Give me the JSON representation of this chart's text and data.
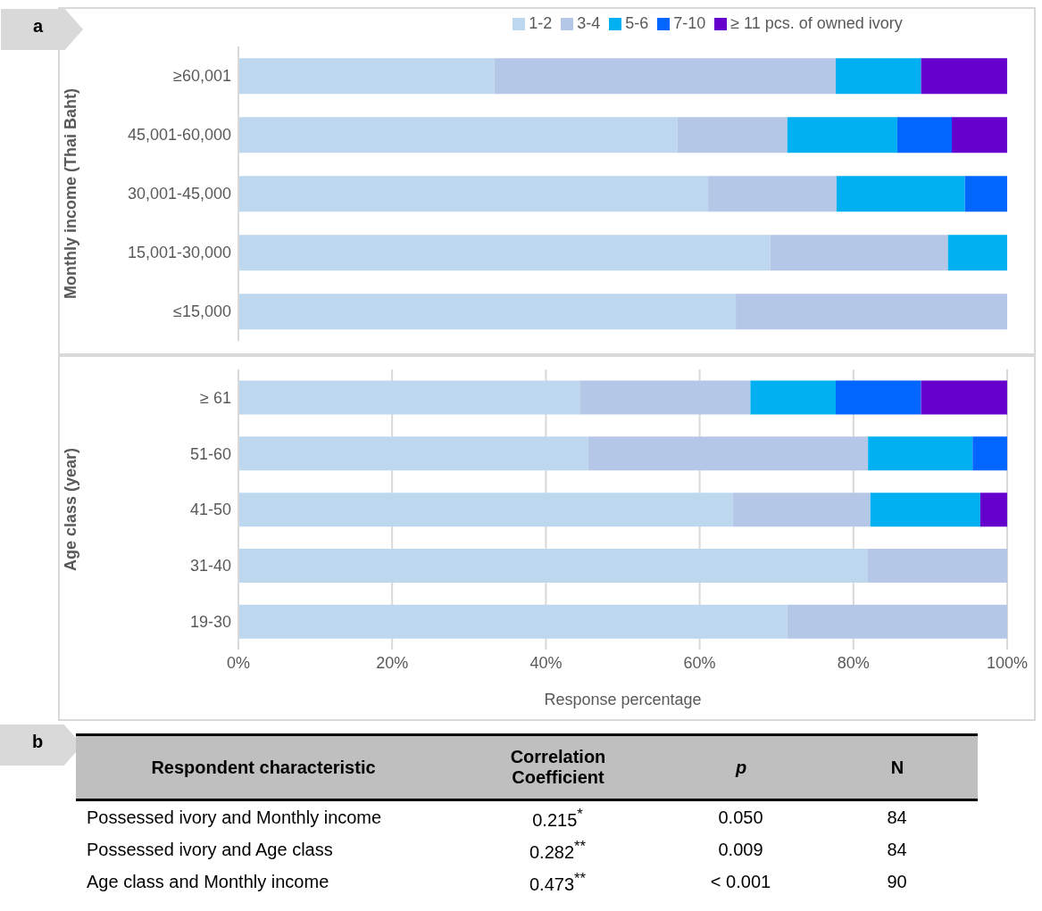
{
  "chart_data": [
    {
      "type": "bar",
      "orientation": "horizontal",
      "stacked": true,
      "annotations": [
        "a"
      ],
      "ylabel": "Monthly income (Thai Baht)",
      "categories": [
        "≥60,001",
        "45,001-60,000",
        "30,001-45,000",
        "15,001-30,000",
        "≤15,000"
      ],
      "series": [
        {
          "name": "1-2",
          "color": "#bdd7ee",
          "values": [
            33.3,
            57.1,
            61.1,
            69.2,
            64.7
          ]
        },
        {
          "name": "3-4",
          "color": "#b4c7e7",
          "values": [
            44.4,
            14.3,
            16.7,
            23.1,
            35.3
          ]
        },
        {
          "name": "5-6",
          "color": "#00b0f0",
          "values": [
            11.1,
            14.3,
            16.7,
            7.7,
            0
          ]
        },
        {
          "name": "7-10",
          "color": "#0066ff",
          "values": [
            0,
            7.1,
            5.5,
            0,
            0
          ]
        },
        {
          "name": "≥ 11 pcs. of owned ivory",
          "color": "#6600cc",
          "values": [
            11.2,
            7.2,
            0,
            0,
            0
          ]
        }
      ],
      "xlim": [
        0,
        100
      ],
      "xticks": [
        {
          "value": 0,
          "label": null
        },
        {
          "value": 20,
          "label": null
        },
        {
          "value": 40,
          "label": null
        },
        {
          "value": 60,
          "label": null
        },
        {
          "value": 80,
          "label": null
        },
        {
          "value": 100,
          "label": null
        }
      ],
      "grid": "x",
      "legend": "top",
      "tick_labels": "y"
    },
    {
      "type": "bar",
      "orientation": "horizontal",
      "stacked": true,
      "ylabel": "Age class (year)",
      "xlabel": "Response percentage",
      "categories": [
        "≥ 61",
        "51-60",
        "41-50",
        "31-40",
        "19-30"
      ],
      "series": [
        {
          "color": "#bdd7ee",
          "values": [
            44.4,
            45.5,
            64.3,
            81.8,
            71.4
          ]
        },
        {
          "color": "#b4c7e7",
          "values": [
            22.2,
            36.4,
            17.9,
            18.2,
            28.6
          ]
        },
        {
          "color": "#00b0f0",
          "values": [
            11.1,
            13.6,
            14.3,
            0,
            0
          ]
        },
        {
          "color": "#0066ff",
          "values": [
            11.1,
            4.5,
            0,
            0,
            0
          ]
        },
        {
          "color": "#6600cc",
          "values": [
            11.2,
            0,
            3.5,
            0,
            0
          ]
        }
      ],
      "xlim": [
        0,
        100
      ],
      "xticks": [
        {
          "value": 0,
          "label": "0%"
        },
        {
          "value": 20,
          "label": "20%"
        },
        {
          "value": 40,
          "label": "40%"
        },
        {
          "value": 60,
          "label": "60%"
        },
        {
          "value": 80,
          "label": "80%"
        },
        {
          "value": 100,
          "label": "100%"
        }
      ],
      "grid": "x"
    },
    {
      "type": "other",
      "annotations": [
        "b",
        "Respondent characteristic",
        "Correlation Coefficient",
        "p",
        "N",
        "Possessed ivory and Monthly income",
        "0.215$^{*}$",
        "0.050",
        "84",
        "Possessed ivory and Age class",
        "0.282$^{**}$",
        "0.009",
        "84",
        "Age class and Monthly income",
        "0.473$^{**}$",
        "< 0.001",
        "90"
      ]
    }
  ]
}
